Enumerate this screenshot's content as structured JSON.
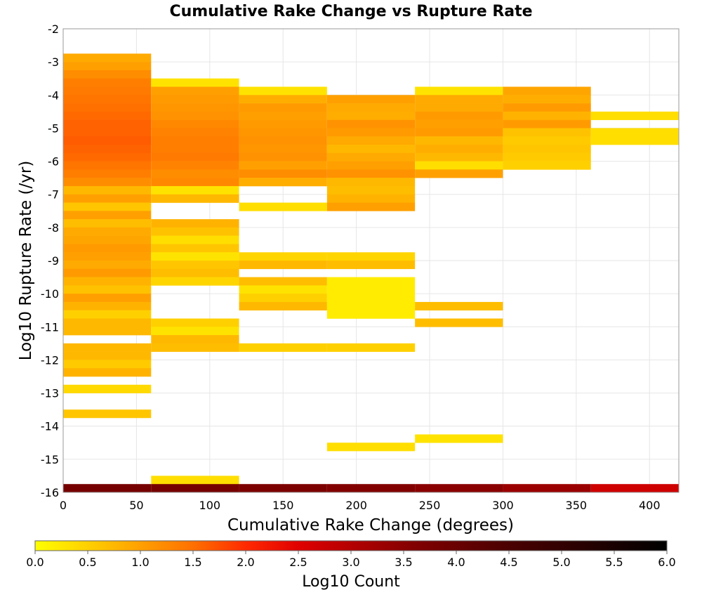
{
  "chart_data": {
    "type": "heatmap",
    "title": "Cumulative Rake Change vs Rupture Rate",
    "xlabel": "Cumulative Rake Change (degrees)",
    "ylabel": "Log10 Rupture Rate (/yr)",
    "xlim": [
      0,
      420
    ],
    "ylim": [
      -16,
      -2
    ],
    "xticks": [
      0,
      50,
      100,
      150,
      200,
      250,
      300,
      350,
      400
    ],
    "yticks": [
      -16,
      -15,
      -14,
      -13,
      -12,
      -11,
      -10,
      -9,
      -8,
      -7,
      -6,
      -5,
      -4,
      -3,
      -2
    ],
    "x_bin_width": 60,
    "y_bin_height": 0.25,
    "grid": true,
    "colorbar": {
      "label": "Log10 Count",
      "min": 0.0,
      "max": 6.0,
      "ticks": [
        "0.0",
        "0.5",
        "1.0",
        "1.5",
        "2.0",
        "2.5",
        "3.0",
        "3.5",
        "4.0",
        "4.5",
        "5.0",
        "5.5",
        "6.0"
      ],
      "colors": [
        "#ffff00",
        "#ffd000",
        "#ffa000",
        "#ff7000",
        "#ff2a00",
        "#e00000",
        "#b40000",
        "#820000",
        "#500000",
        "#000000"
      ],
      "stops": [
        0.0,
        0.5,
        1.0,
        1.5,
        2.0,
        2.5,
        3.0,
        3.6,
        4.4,
        6.0
      ]
    },
    "cells": [
      {
        "x": 0,
        "y": -3.0,
        "v": 0.9
      },
      {
        "x": 0,
        "y": -3.25,
        "v": 1.0
      },
      {
        "x": 0,
        "y": -3.5,
        "v": 1.2
      },
      {
        "x": 0,
        "y": -3.75,
        "v": 1.35
      },
      {
        "x": 0,
        "y": -4.0,
        "v": 1.4
      },
      {
        "x": 0,
        "y": -4.25,
        "v": 1.45
      },
      {
        "x": 0,
        "y": -4.5,
        "v": 1.5
      },
      {
        "x": 0,
        "y": -4.75,
        "v": 1.55
      },
      {
        "x": 0,
        "y": -5.0,
        "v": 1.6
      },
      {
        "x": 0,
        "y": -5.25,
        "v": 1.6
      },
      {
        "x": 0,
        "y": -5.5,
        "v": 1.65
      },
      {
        "x": 0,
        "y": -5.75,
        "v": 1.6
      },
      {
        "x": 0,
        "y": -6.0,
        "v": 1.55
      },
      {
        "x": 0,
        "y": -6.25,
        "v": 1.45
      },
      {
        "x": 0,
        "y": -6.5,
        "v": 1.35
      },
      {
        "x": 0,
        "y": -6.75,
        "v": 1.2
      },
      {
        "x": 0,
        "y": -7.0,
        "v": 0.75
      },
      {
        "x": 0,
        "y": -7.25,
        "v": 1.0
      },
      {
        "x": 0,
        "y": -7.5,
        "v": 0.6
      },
      {
        "x": 0,
        "y": -7.75,
        "v": 1.0
      },
      {
        "x": 0,
        "y": -8.0,
        "v": 0.7
      },
      {
        "x": 0,
        "y": -8.25,
        "v": 0.9
      },
      {
        "x": 0,
        "y": -8.5,
        "v": 0.95
      },
      {
        "x": 0,
        "y": -8.75,
        "v": 1.05
      },
      {
        "x": 0,
        "y": -9.0,
        "v": 1.0
      },
      {
        "x": 0,
        "y": -9.25,
        "v": 0.9
      },
      {
        "x": 0,
        "y": -9.5,
        "v": 1.05
      },
      {
        "x": 0,
        "y": -9.75,
        "v": 0.8
      },
      {
        "x": 0,
        "y": -10.0,
        "v": 0.65
      },
      {
        "x": 0,
        "y": -10.25,
        "v": 1.0
      },
      {
        "x": 0,
        "y": -10.5,
        "v": 0.8
      },
      {
        "x": 0,
        "y": -10.75,
        "v": 0.5
      },
      {
        "x": 0,
        "y": -11.0,
        "v": 0.75
      },
      {
        "x": 0,
        "y": -11.25,
        "v": 0.75
      },
      {
        "x": 0,
        "y": -11.75,
        "v": 0.75
      },
      {
        "x": 0,
        "y": -12.0,
        "v": 0.75
      },
      {
        "x": 0,
        "y": -12.25,
        "v": 0.55
      },
      {
        "x": 0,
        "y": -12.5,
        "v": 0.8
      },
      {
        "x": 0,
        "y": -13.0,
        "v": 0.4
      },
      {
        "x": 0,
        "y": -13.75,
        "v": 0.6
      },
      {
        "x": 60,
        "y": -3.75,
        "v": 0.3
      },
      {
        "x": 60,
        "y": -4.0,
        "v": 1.0
      },
      {
        "x": 60,
        "y": -4.25,
        "v": 1.05
      },
      {
        "x": 60,
        "y": -4.5,
        "v": 1.1
      },
      {
        "x": 60,
        "y": -4.75,
        "v": 1.15
      },
      {
        "x": 60,
        "y": -5.0,
        "v": 1.25
      },
      {
        "x": 60,
        "y": -5.25,
        "v": 1.3
      },
      {
        "x": 60,
        "y": -5.5,
        "v": 1.35
      },
      {
        "x": 60,
        "y": -5.75,
        "v": 1.35
      },
      {
        "x": 60,
        "y": -6.0,
        "v": 1.4
      },
      {
        "x": 60,
        "y": -6.25,
        "v": 1.3
      },
      {
        "x": 60,
        "y": -6.5,
        "v": 1.2
      },
      {
        "x": 60,
        "y": -6.75,
        "v": 1.25
      },
      {
        "x": 60,
        "y": -7.0,
        "v": 0.3
      },
      {
        "x": 60,
        "y": -7.25,
        "v": 0.75
      },
      {
        "x": 60,
        "y": -8.0,
        "v": 0.8
      },
      {
        "x": 60,
        "y": -8.25,
        "v": 0.65
      },
      {
        "x": 60,
        "y": -8.5,
        "v": 0.35
      },
      {
        "x": 60,
        "y": -8.75,
        "v": 0.6
      },
      {
        "x": 60,
        "y": -9.0,
        "v": 0.3
      },
      {
        "x": 60,
        "y": -9.25,
        "v": 0.6
      },
      {
        "x": 60,
        "y": -9.5,
        "v": 0.7
      },
      {
        "x": 60,
        "y": -9.75,
        "v": 0.45
      },
      {
        "x": 60,
        "y": -11.0,
        "v": 0.5
      },
      {
        "x": 60,
        "y": -11.25,
        "v": 0.3
      },
      {
        "x": 60,
        "y": -11.5,
        "v": 0.75
      },
      {
        "x": 60,
        "y": -11.75,
        "v": 0.7
      },
      {
        "x": 60,
        "y": -15.75,
        "v": 0.35
      },
      {
        "x": 120,
        "y": -4.0,
        "v": 0.3
      },
      {
        "x": 120,
        "y": -4.25,
        "v": 0.85
      },
      {
        "x": 120,
        "y": -4.5,
        "v": 1.05
      },
      {
        "x": 120,
        "y": -4.75,
        "v": 1.0
      },
      {
        "x": 120,
        "y": -5.0,
        "v": 1.05
      },
      {
        "x": 120,
        "y": -5.25,
        "v": 1.1
      },
      {
        "x": 120,
        "y": -5.5,
        "v": 1.15
      },
      {
        "x": 120,
        "y": -5.75,
        "v": 1.1
      },
      {
        "x": 120,
        "y": -6.0,
        "v": 1.15
      },
      {
        "x": 120,
        "y": -6.25,
        "v": 1.0
      },
      {
        "x": 120,
        "y": -6.5,
        "v": 1.2
      },
      {
        "x": 120,
        "y": -6.75,
        "v": 0.85
      },
      {
        "x": 120,
        "y": -7.5,
        "v": 0.35
      },
      {
        "x": 120,
        "y": -9.0,
        "v": 0.45
      },
      {
        "x": 120,
        "y": -9.25,
        "v": 0.75
      },
      {
        "x": 120,
        "y": -9.75,
        "v": 0.7
      },
      {
        "x": 120,
        "y": -10.0,
        "v": 0.3
      },
      {
        "x": 120,
        "y": -10.25,
        "v": 0.5
      },
      {
        "x": 120,
        "y": -10.5,
        "v": 0.75
      },
      {
        "x": 120,
        "y": -11.75,
        "v": 0.5
      },
      {
        "x": 180,
        "y": -4.25,
        "v": 1.0
      },
      {
        "x": 180,
        "y": -4.5,
        "v": 0.9
      },
      {
        "x": 180,
        "y": -4.75,
        "v": 0.85
      },
      {
        "x": 180,
        "y": -5.0,
        "v": 1.15
      },
      {
        "x": 180,
        "y": -5.25,
        "v": 1.05
      },
      {
        "x": 180,
        "y": -5.5,
        "v": 0.9
      },
      {
        "x": 180,
        "y": -5.75,
        "v": 0.75
      },
      {
        "x": 180,
        "y": -6.0,
        "v": 0.9
      },
      {
        "x": 180,
        "y": -6.25,
        "v": 1.0
      },
      {
        "x": 180,
        "y": -6.5,
        "v": 1.15
      },
      {
        "x": 180,
        "y": -6.75,
        "v": 0.75
      },
      {
        "x": 180,
        "y": -7.0,
        "v": 0.7
      },
      {
        "x": 180,
        "y": -7.25,
        "v": 0.8
      },
      {
        "x": 180,
        "y": -7.5,
        "v": 1.0
      },
      {
        "x": 180,
        "y": -9.0,
        "v": 0.45
      },
      {
        "x": 180,
        "y": -9.25,
        "v": 0.7
      },
      {
        "x": 180,
        "y": -9.75,
        "v": 0.2
      },
      {
        "x": 180,
        "y": -10.0,
        "v": 0.2
      },
      {
        "x": 180,
        "y": -10.25,
        "v": 0.2
      },
      {
        "x": 180,
        "y": -10.5,
        "v": 0.2
      },
      {
        "x": 180,
        "y": -10.75,
        "v": 0.2
      },
      {
        "x": 180,
        "y": -11.75,
        "v": 0.5
      },
      {
        "x": 180,
        "y": -14.75,
        "v": 0.35
      },
      {
        "x": 240,
        "y": -4.0,
        "v": 0.3
      },
      {
        "x": 240,
        "y": -4.25,
        "v": 0.9
      },
      {
        "x": 240,
        "y": -4.5,
        "v": 0.9
      },
      {
        "x": 240,
        "y": -4.75,
        "v": 1.05
      },
      {
        "x": 240,
        "y": -5.0,
        "v": 1.0
      },
      {
        "x": 240,
        "y": -5.25,
        "v": 1.05
      },
      {
        "x": 240,
        "y": -5.5,
        "v": 0.75
      },
      {
        "x": 240,
        "y": -5.75,
        "v": 0.85
      },
      {
        "x": 240,
        "y": -6.0,
        "v": 0.75
      },
      {
        "x": 240,
        "y": -6.25,
        "v": 0.35
      },
      {
        "x": 240,
        "y": -6.5,
        "v": 1.0
      },
      {
        "x": 240,
        "y": -10.5,
        "v": 0.7
      },
      {
        "x": 240,
        "y": -11.0,
        "v": 0.7
      },
      {
        "x": 240,
        "y": -14.5,
        "v": 0.3
      },
      {
        "x": 300,
        "y": -4.0,
        "v": 0.95
      },
      {
        "x": 300,
        "y": -4.25,
        "v": 0.85
      },
      {
        "x": 300,
        "y": -4.5,
        "v": 1.05
      },
      {
        "x": 300,
        "y": -4.75,
        "v": 0.8
      },
      {
        "x": 300,
        "y": -5.0,
        "v": 1.05
      },
      {
        "x": 300,
        "y": -5.25,
        "v": 0.65
      },
      {
        "x": 300,
        "y": -5.5,
        "v": 0.55
      },
      {
        "x": 300,
        "y": -5.75,
        "v": 0.6
      },
      {
        "x": 300,
        "y": -6.0,
        "v": 0.55
      },
      {
        "x": 300,
        "y": -6.25,
        "v": 0.5
      },
      {
        "x": 360,
        "y": -4.75,
        "v": 0.35
      },
      {
        "x": 360,
        "y": -5.25,
        "v": 0.35
      },
      {
        "x": 360,
        "y": -5.5,
        "v": 0.35
      },
      {
        "x": 0,
        "y": -16.0,
        "v": 3.8
      },
      {
        "x": 60,
        "y": -16.0,
        "v": 3.8
      },
      {
        "x": 120,
        "y": -16.0,
        "v": 3.7
      },
      {
        "x": 180,
        "y": -16.0,
        "v": 3.6
      },
      {
        "x": 240,
        "y": -16.0,
        "v": 3.5
      },
      {
        "x": 300,
        "y": -16.0,
        "v": 3.3
      },
      {
        "x": 360,
        "y": -16.0,
        "v": 2.7
      }
    ]
  }
}
